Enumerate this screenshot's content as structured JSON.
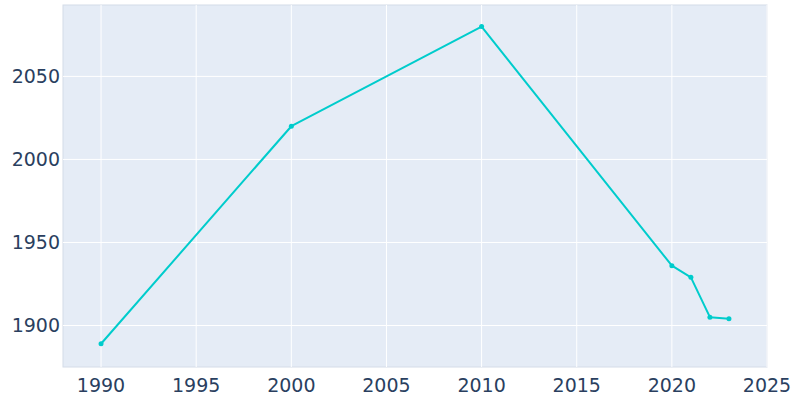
{
  "chart_data": {
    "type": "line",
    "x": [
      1990,
      2000,
      2010,
      2020,
      2021,
      2022,
      2023
    ],
    "values": [
      1889,
      2020,
      2080,
      1936,
      1929,
      1905,
      1904
    ],
    "color": "#00cccc",
    "marker": "circle",
    "xlim": [
      1988,
      2025
    ],
    "xticks": [
      1990,
      1995,
      2000,
      2005,
      2010,
      2015,
      2020,
      2025
    ],
    "ylim": [
      1875,
      2093
    ],
    "yticks": [
      1900,
      1950,
      2000,
      2050
    ],
    "grid": true
  }
}
